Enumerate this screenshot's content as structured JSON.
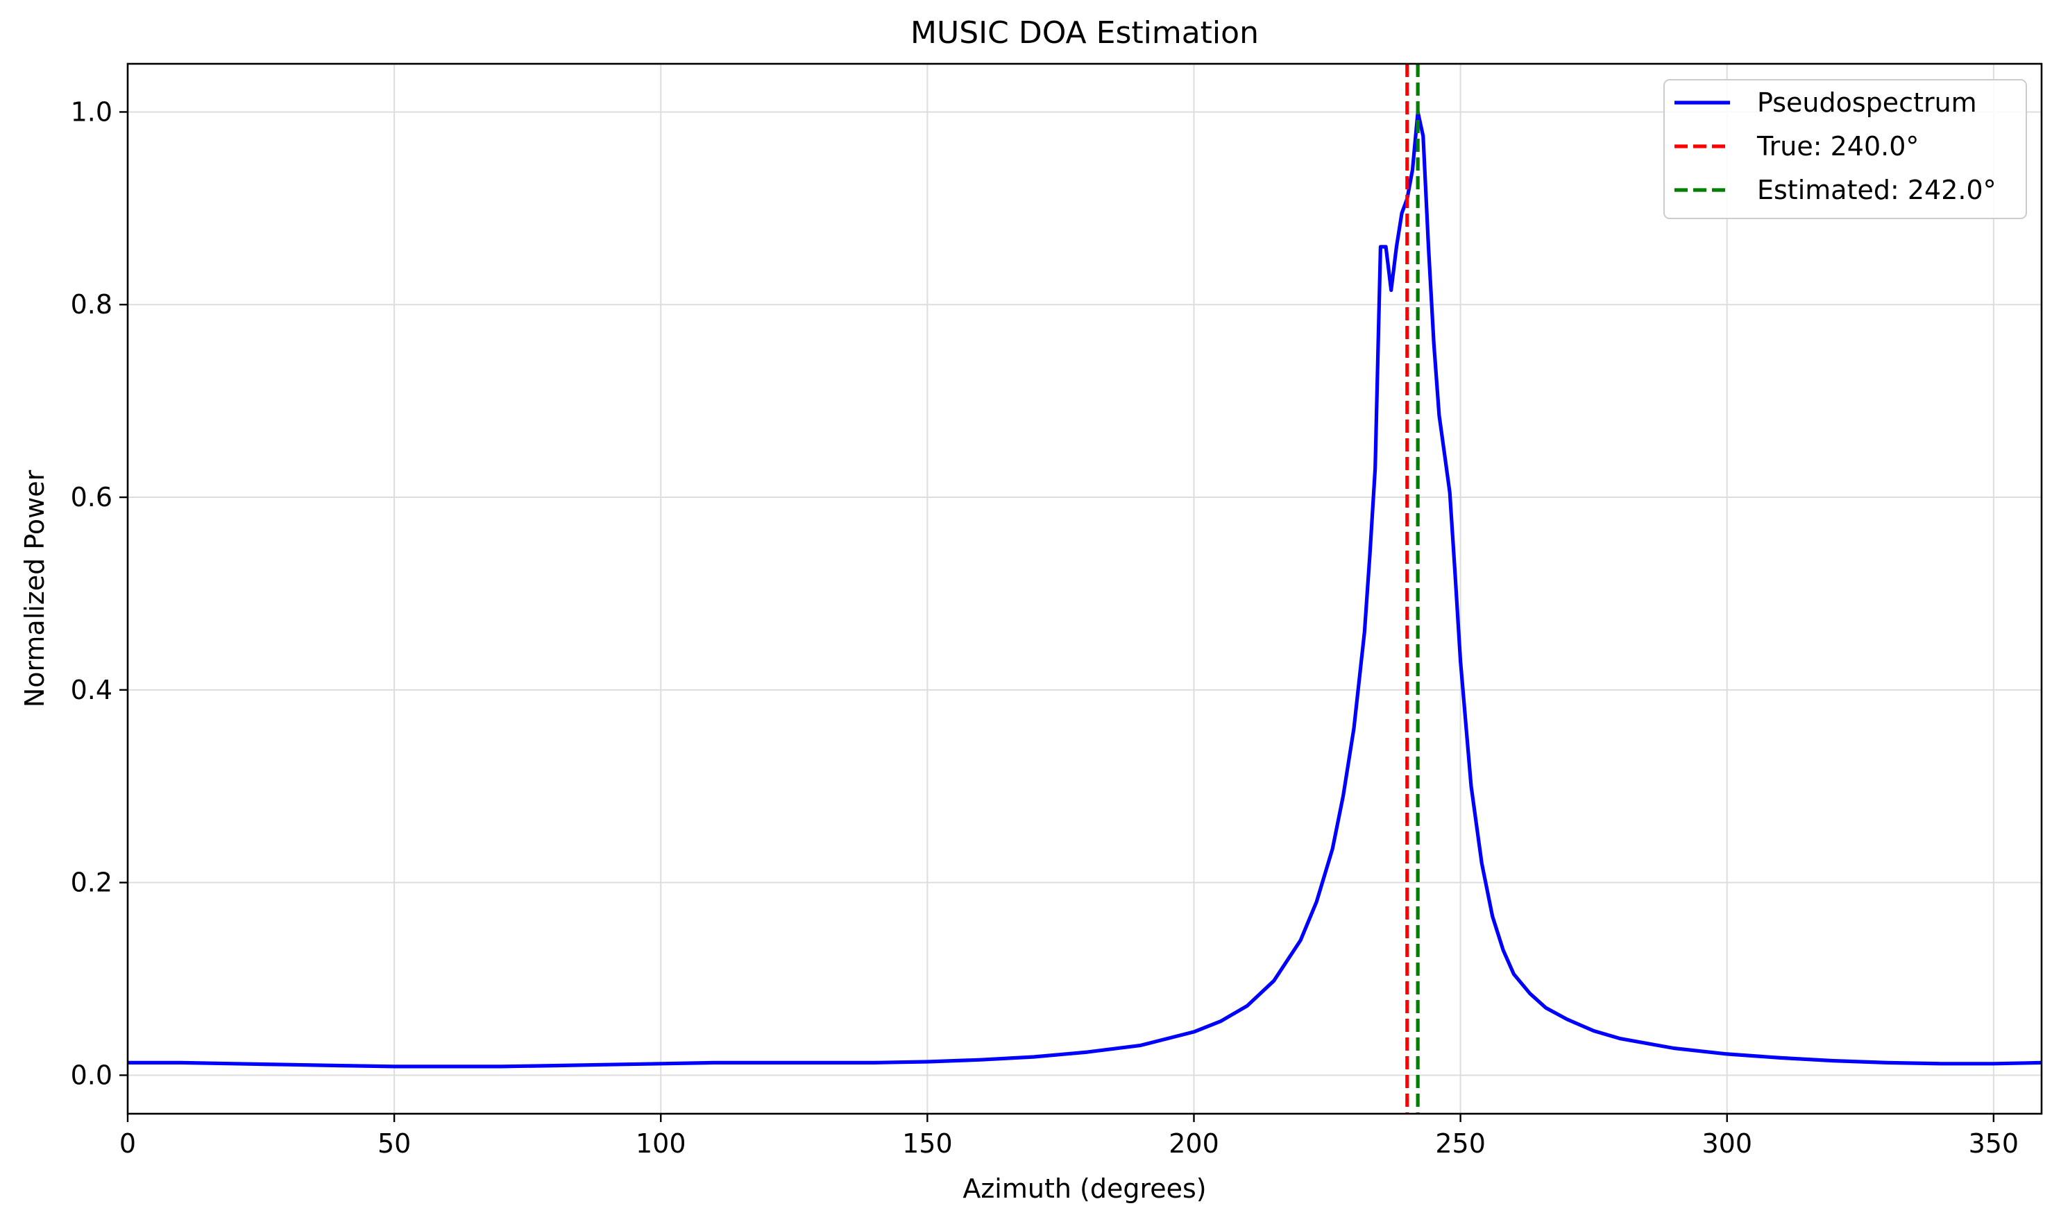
{
  "chart_data": {
    "type": "line",
    "title": "MUSIC DOA Estimation",
    "xlabel": "Azimuth (degrees)",
    "ylabel": "Normalized Power",
    "xlim": [
      0,
      359
    ],
    "ylim": [
      -0.04,
      1.05
    ],
    "xticks": [
      0,
      50,
      100,
      150,
      200,
      250,
      300,
      350
    ],
    "yticks": [
      0.0,
      0.2,
      0.4,
      0.6,
      0.8,
      1.0
    ],
    "xtick_labels": [
      "0",
      "50",
      "100",
      "150",
      "200",
      "250",
      "300",
      "350"
    ],
    "ytick_labels": [
      "0.0",
      "0.2",
      "0.4",
      "0.6",
      "0.8",
      "1.0"
    ],
    "grid": true,
    "legend_position": "top-right",
    "series": [
      {
        "name": "Pseudospectrum",
        "style": "solid",
        "color": "#0000ff",
        "x": [
          0,
          10,
          20,
          30,
          40,
          50,
          60,
          70,
          80,
          90,
          100,
          110,
          120,
          130,
          140,
          150,
          160,
          170,
          180,
          190,
          200,
          205,
          210,
          215,
          220,
          223,
          226,
          228,
          230,
          232,
          233,
          234,
          235,
          236,
          237,
          238,
          239,
          240,
          241,
          242,
          243,
          244,
          245,
          246,
          247,
          248,
          249,
          250,
          252,
          254,
          256,
          258,
          260,
          263,
          266,
          270,
          275,
          280,
          290,
          300,
          310,
          320,
          330,
          340,
          350,
          359
        ],
        "y": [
          0.013,
          0.013,
          0.012,
          0.011,
          0.01,
          0.009,
          0.009,
          0.009,
          0.01,
          0.011,
          0.012,
          0.013,
          0.013,
          0.013,
          0.013,
          0.014,
          0.016,
          0.019,
          0.024,
          0.031,
          0.045,
          0.056,
          0.072,
          0.098,
          0.14,
          0.18,
          0.235,
          0.29,
          0.36,
          0.46,
          0.54,
          0.63,
          0.86,
          0.86,
          0.815,
          0.86,
          0.895,
          0.91,
          0.94,
          1.0,
          0.975,
          0.86,
          0.76,
          0.685,
          0.645,
          0.605,
          0.52,
          0.43,
          0.3,
          0.22,
          0.165,
          0.13,
          0.105,
          0.085,
          0.07,
          0.058,
          0.046,
          0.038,
          0.028,
          0.022,
          0.018,
          0.015,
          0.013,
          0.012,
          0.012,
          0.013
        ]
      }
    ],
    "reference_lines": [
      {
        "name": "True: 240.0°",
        "x": 240.0,
        "style": "dashed",
        "color": "#ff0000"
      },
      {
        "name": "Estimated: 242.0°",
        "x": 242.0,
        "style": "dashed",
        "color": "#008000"
      }
    ]
  }
}
